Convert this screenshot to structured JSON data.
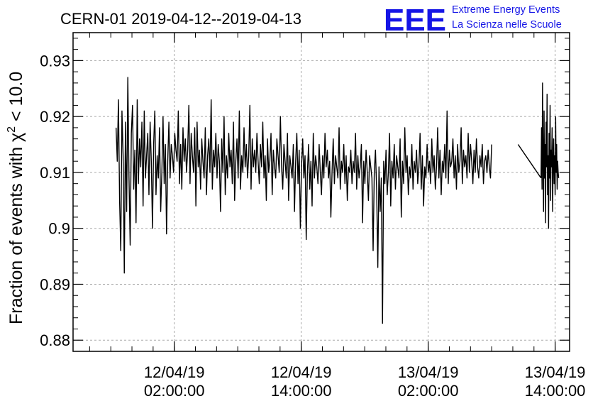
{
  "chart_data": {
    "type": "line",
    "title": "CERN-01 2019-04-12--2019-04-13",
    "ylabel_prefix": "Fraction of events with ",
    "ylabel_chi": "χ",
    "ylabel_sup": "2",
    "ylabel_suffix": " < 10.0",
    "xlabel": "",
    "ylim": [
      0.878,
      0.935
    ],
    "yticks": [
      {
        "value": 0.88,
        "label": "0.88"
      },
      {
        "value": 0.89,
        "label": "0.89"
      },
      {
        "value": 0.9,
        "label": "0.9"
      },
      {
        "value": 0.91,
        "label": "0.91"
      },
      {
        "value": 0.92,
        "label": "0.92"
      },
      {
        "value": 0.93,
        "label": "0.93"
      }
    ],
    "xlim": [
      "2019-04-11T16:26",
      "2019-04-13T15:22"
    ],
    "xticks": [
      {
        "value": "2019-04-12T02:00",
        "date": "12/04/19",
        "time": "02:00:00"
      },
      {
        "value": "2019-04-12T14:00",
        "date": "12/04/19",
        "time": "14:00:00"
      },
      {
        "value": "2019-04-13T02:00",
        "date": "13/04/19",
        "time": "02:00:00"
      },
      {
        "value": "2019-04-13T14:00",
        "date": "13/04/19",
        "time": "14:00:00"
      }
    ],
    "grid": true,
    "line_color": "#000000",
    "series": [
      {
        "segments": [
          {
            "x_start": "2019-04-11T20:30",
            "x_end": "2019-04-13T08:00",
            "values": [
              0.918,
              0.912,
              0.923,
              0.905,
              0.896,
              0.921,
              0.913,
              0.892,
              0.919,
              0.903,
              0.927,
              0.909,
              0.897,
              0.917,
              0.922,
              0.907,
              0.914,
              0.901,
              0.923,
              0.908,
              0.916,
              0.911,
              0.919,
              0.904,
              0.921,
              0.909,
              0.913,
              0.917,
              0.906,
              0.919,
              0.912,
              0.9,
              0.915,
              0.921,
              0.906,
              0.913,
              0.909,
              0.918,
              0.903,
              0.91,
              0.92,
              0.908,
              0.915,
              0.899,
              0.912,
              0.919,
              0.909,
              0.915,
              0.913,
              0.91,
              0.917,
              0.914,
              0.912,
              0.921,
              0.908,
              0.915,
              0.907,
              0.918,
              0.912,
              0.916,
              0.91,
              0.914,
              0.922,
              0.908,
              0.917,
              0.913,
              0.91,
              0.918,
              0.904,
              0.919,
              0.911,
              0.914,
              0.907,
              0.916,
              0.912,
              0.909,
              0.918,
              0.906,
              0.913,
              0.916,
              0.91,
              0.923,
              0.907,
              0.914,
              0.911,
              0.917,
              0.909,
              0.915,
              0.912,
              0.903,
              0.916,
              0.91,
              0.92,
              0.906,
              0.913,
              0.909,
              0.917,
              0.911,
              0.914,
              0.908,
              0.919,
              0.905,
              0.912,
              0.916,
              0.909,
              0.921,
              0.907,
              0.913,
              0.91,
              0.918,
              0.911,
              0.915,
              0.909,
              0.913,
              0.922,
              0.907,
              0.916,
              0.911,
              0.914,
              0.91,
              0.917,
              0.912,
              0.908,
              0.915,
              0.911,
              0.919,
              0.909,
              0.913,
              0.905,
              0.916,
              0.91,
              0.912,
              0.917,
              0.906,
              0.914,
              0.911,
              0.909,
              0.916,
              0.913,
              0.91,
              0.92,
              0.911,
              0.907,
              0.915,
              0.912,
              0.909,
              0.917,
              0.905,
              0.913,
              0.911,
              0.909,
              0.915,
              0.903,
              0.912,
              0.917,
              0.908,
              0.914,
              0.9,
              0.911,
              0.916,
              0.909,
              0.913,
              0.898,
              0.91,
              0.915,
              0.907,
              0.912,
              0.904,
              0.917,
              0.909,
              0.913,
              0.911,
              0.908,
              0.915,
              0.91,
              0.906,
              0.913,
              0.909,
              0.917,
              0.911,
              0.914,
              0.909,
              0.912,
              0.902,
              0.91,
              0.916,
              0.908,
              0.913,
              0.911,
              0.909,
              0.918,
              0.907,
              0.912,
              0.91,
              0.915,
              0.908,
              0.913,
              0.905,
              0.911,
              0.91,
              0.914,
              0.908,
              0.912,
              0.91,
              0.917,
              0.907,
              0.913,
              0.909,
              0.911,
              0.915,
              0.901,
              0.912,
              0.908,
              0.914,
              0.91,
              0.905,
              0.913,
              0.911,
              0.909,
              0.896,
              0.91,
              0.914,
              0.907,
              0.893,
              0.911,
              0.903,
              0.909,
              0.883,
              0.912,
              0.908,
              0.914,
              0.906,
              0.91,
              0.917,
              0.904,
              0.912,
              0.909,
              0.915,
              0.907,
              0.913,
              0.911,
              0.909,
              0.916,
              0.902,
              0.912,
              0.908,
              0.918,
              0.91,
              0.913,
              0.906,
              0.911,
              0.909,
              0.915,
              0.907,
              0.912,
              0.91,
              0.914,
              0.908,
              0.911,
              0.917,
              0.907,
              0.913,
              0.904,
              0.911,
              0.909,
              0.915,
              0.91,
              0.912,
              0.908,
              0.916,
              0.91,
              0.913,
              0.907,
              0.911,
              0.918,
              0.909,
              0.914,
              0.906,
              0.912,
              0.91,
              0.915,
              0.909,
              0.921,
              0.908,
              0.914,
              0.911,
              0.912,
              0.916,
              0.909,
              0.913,
              0.907,
              0.915,
              0.91,
              0.912,
              0.918,
              0.908,
              0.914,
              0.911,
              0.913,
              0.909,
              0.917,
              0.91,
              0.915,
              0.912,
              0.908,
              0.914,
              0.91,
              0.916,
              0.911,
              0.909,
              0.913,
              0.911,
              0.915,
              0.908,
              0.912,
              0.913,
              0.91,
              0.914,
              0.911,
              0.909,
              0.915
            ]
          },
          {
            "x_start": "2019-04-13T10:30",
            "x_end": "2019-04-13T12:40",
            "values": [
              0.915,
              0.913,
              0.911,
              0.909
            ]
          },
          {
            "x_start": "2019-04-13T12:40",
            "x_end": "2019-04-13T14:20",
            "values": [
              0.909,
              0.918,
              0.907,
              0.926,
              0.912,
              0.903,
              0.921,
              0.909,
              0.915,
              0.901,
              0.919,
              0.911,
              0.924,
              0.906,
              0.913,
              0.9,
              0.917,
              0.909,
              0.922,
              0.905,
              0.914,
              0.911,
              0.918,
              0.903,
              0.912,
              0.916,
              0.908,
              0.913,
              0.906,
              0.92,
              0.91,
              0.915,
              0.907,
              0.912,
              0.91,
              0.909
            ]
          }
        ]
      }
    ]
  },
  "logo": {
    "text": "EEE",
    "line1": "Extreme Energy Events",
    "line2": "La Scienza nelle Scuole",
    "color": "#1515e6"
  }
}
